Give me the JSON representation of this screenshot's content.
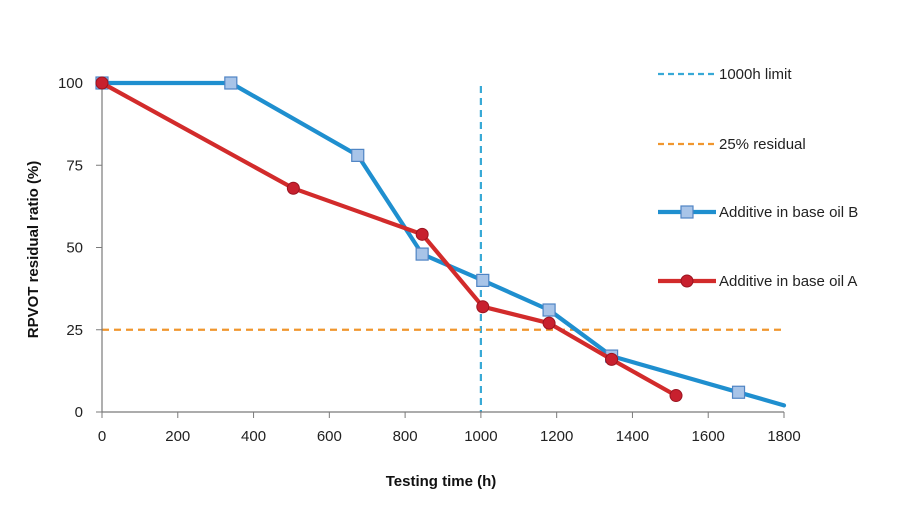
{
  "chart_data": {
    "type": "line",
    "title": "",
    "xlabel": "Testing time (h)",
    "ylabel": "RPVOT residual ratio (%)",
    "xlim": [
      0,
      1800
    ],
    "ylim": [
      0,
      100
    ],
    "xticks": [
      0,
      200,
      400,
      600,
      800,
      1000,
      1200,
      1400,
      1600,
      1800
    ],
    "yticks": [
      0,
      25,
      50,
      75,
      100
    ],
    "grid": false,
    "legend_position": "right",
    "series": [
      {
        "name": "Additive in base oil B",
        "color": "#1f8fcf",
        "marker": "square",
        "marker_fill": "#a8c4e8",
        "x": [
          0,
          340,
          675,
          845,
          1005,
          1180,
          1345,
          1680,
          1800
        ],
        "y": [
          100,
          100,
          78,
          48,
          40,
          31,
          17,
          6,
          2
        ]
      },
      {
        "name": "Additive in base oil A",
        "color": "#d22b2b",
        "marker": "circle",
        "marker_fill": "#c8202e",
        "x": [
          0,
          505,
          845,
          1005,
          1180,
          1345,
          1515
        ],
        "y": [
          100,
          68,
          54,
          32,
          27,
          16,
          5
        ]
      }
    ],
    "reference_lines": [
      {
        "name": "1000h limit",
        "orientation": "vertical",
        "value": 1000,
        "color": "#38a9d6",
        "dash": "dashed"
      },
      {
        "name": "25% residual",
        "orientation": "horizontal",
        "value": 25,
        "color": "#f0962e",
        "dash": "dashed"
      }
    ],
    "legend": [
      {
        "label": "1000h limit",
        "ref": "1000h limit"
      },
      {
        "label": "25% residual",
        "ref": "25% residual"
      },
      {
        "label": "Additive in base oil B",
        "ref": "Additive in base oil B"
      },
      {
        "label": "Additive in base oil A",
        "ref": "Additive in base oil A"
      }
    ]
  }
}
